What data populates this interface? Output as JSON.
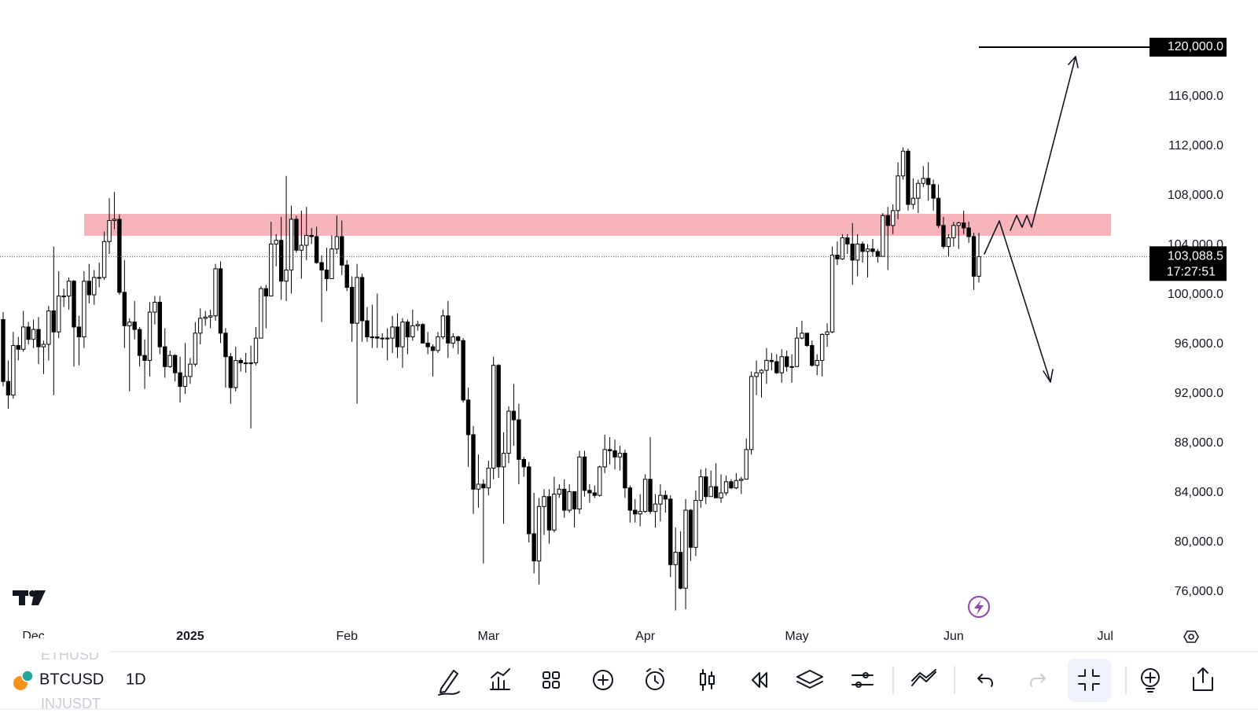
{
  "chart_data": {
    "type": "candlestick",
    "categories": [
      null,
      null,
      null,
      null,
      null,
      null,
      "Dec",
      null,
      null,
      null,
      null,
      null,
      null,
      null,
      null,
      null,
      null,
      null,
      null,
      null,
      null,
      null,
      null,
      null,
      null,
      null,
      null,
      null,
      null,
      null,
      null,
      null,
      null,
      null,
      null,
      null,
      null,
      "2025",
      null,
      null,
      null,
      null,
      null,
      null,
      null,
      null,
      null,
      null,
      null,
      null,
      null,
      null,
      null,
      null,
      null,
      null,
      null,
      null,
      null,
      null,
      null,
      null,
      null,
      null,
      null,
      null,
      null,
      null,
      "Feb",
      null,
      null,
      null,
      null,
      null,
      null,
      null,
      null,
      null,
      null,
      null,
      null,
      null,
      null,
      null,
      null,
      null,
      null,
      null,
      null,
      null,
      null,
      null,
      null,
      null,
      null,
      null,
      "Mar",
      null,
      null,
      null,
      null,
      null,
      null,
      null,
      null,
      null,
      null,
      null,
      null,
      null,
      null,
      null,
      null,
      null,
      null,
      null,
      null,
      null,
      null,
      null,
      null,
      null,
      null,
      null,
      null,
      null,
      null,
      "Apr",
      null,
      null,
      null,
      null,
      null,
      null,
      null,
      null,
      null,
      null,
      null,
      null,
      null,
      null,
      null,
      null,
      null,
      null,
      null,
      null,
      null,
      null,
      null,
      null,
      null,
      null,
      null,
      null,
      null,
      "May",
      null,
      null,
      null,
      null,
      null,
      null,
      null,
      null,
      null,
      null,
      null,
      null,
      null,
      null,
      null,
      null,
      null,
      null,
      null,
      null,
      null,
      null,
      null,
      null,
      null,
      null,
      null,
      null,
      null,
      null,
      "Jun",
      null,
      null,
      null,
      null,
      null,
      null,
      null,
      null,
      null,
      null,
      null,
      null,
      null,
      null,
      null,
      null,
      null,
      null,
      null,
      null,
      null,
      null,
      null,
      null,
      null,
      null,
      null,
      null,
      null,
      "Jul",
      null,
      null,
      null,
      null,
      null
    ],
    "open": [
      98000,
      93000,
      91900,
      95900,
      95600,
      97400,
      96400,
      97200,
      95800,
      96000,
      98700,
      97000,
      99900,
      99900,
      101100,
      97400,
      96600,
      101100,
      100000,
      101400,
      101400,
      104300,
      106000,
      106100,
      100200,
      97500,
      97800,
      97200,
      95100,
      94700,
      98600,
      99400,
      95800,
      94200,
      95100,
      93700,
      92600,
      93400,
      94400,
      96900,
      98100,
      98200,
      98300,
      102100,
      96900,
      95000,
      92500,
      94700,
      94500,
      94500,
      94500,
      96500,
      100500,
      99900,
      104100,
      104400,
      101100,
      102000,
      106100,
      103600,
      104000,
      104800,
      104700,
      102600,
      102000,
      101300,
      103700,
      104700,
      102400,
      100600,
      97700,
      101400,
      97900,
      96600,
      96600,
      96500,
      96500,
      96500,
      97400,
      95800,
      97800,
      96600,
      97500,
      97600,
      96100,
      95800,
      95500,
      96600,
      98300,
      96100,
      96600,
      96300,
      91500,
      88700,
      84300,
      84700,
      84400,
      86000,
      94300,
      86100,
      87200,
      90600,
      89900,
      86700,
      86100,
      80700,
      78500,
      82900,
      83700,
      81000,
      83900,
      84300,
      82600,
      84100,
      82700,
      86900,
      84200,
      84000,
      83800,
      86100,
      87500,
      87400,
      86900,
      87200,
      84400,
      82600,
      82300,
      82500,
      85100,
      82500,
      83100,
      83800,
      83500,
      78200,
      79200,
      76300,
      82600,
      79600,
      83400,
      85300,
      83700,
      84500,
      83600,
      84000,
      84900,
      84400,
      85000,
      85100,
      87500,
      93400,
      93700,
      93900,
      94700,
      94600,
      93700,
      95000,
      94200,
      94200,
      96500,
      96900,
      95900,
      94300,
      94700,
      96800,
      97000,
      103200,
      102900,
      104600,
      104100,
      102800,
      104100,
      103500,
      103700,
      103500,
      103100,
      106400,
      105600,
      106800,
      109600,
      111600,
      107300,
      107800,
      109000,
      109400,
      108900,
      107800,
      105600,
      103900,
      104600,
      105600,
      105800,
      105400,
      104700,
      101500,
      null,
      null,
      null,
      null,
      null,
      null,
      null,
      null,
      null,
      null,
      null,
      null,
      null,
      null,
      null,
      null,
      null,
      null,
      null,
      null,
      null,
      null,
      null,
      null,
      null,
      null,
      null,
      null,
      null,
      null
    ],
    "high": [
      98600,
      94700,
      97000,
      96600,
      98700,
      97800,
      98000,
      98200,
      96300,
      99100,
      103900,
      101900,
      100500,
      101400,
      101200,
      98300,
      101900,
      102500,
      102000,
      102600,
      105100,
      107800,
      108300,
      106500,
      102800,
      98100,
      99500,
      97400,
      96400,
      99400,
      99900,
      99900,
      97300,
      95500,
      95200,
      95000,
      96100,
      94900,
      97800,
      98900,
      98700,
      98800,
      102500,
      102700,
      97300,
      95300,
      95800,
      94900,
      95300,
      95900,
      97400,
      100700,
      100800,
      105900,
      104900,
      106300,
      109600,
      107200,
      106400,
      106800,
      107100,
      105400,
      105500,
      103200,
      103800,
      104800,
      106400,
      106000,
      102800,
      101500,
      102500,
      101700,
      99000,
      99200,
      100100,
      96900,
      97300,
      98300,
      98500,
      98100,
      98000,
      98800,
      97900,
      97700,
      97000,
      96000,
      97000,
      98800,
      99500,
      96900,
      96700,
      96500,
      92500,
      89400,
      87100,
      85100,
      86600,
      95000,
      94400,
      88900,
      91000,
      92800,
      91200,
      86900,
      86500,
      84000,
      83600,
      84300,
      84300,
      85300,
      84700,
      85100,
      84700,
      84100,
      87400,
      87400,
      84700,
      84600,
      86200,
      88700,
      88500,
      88300,
      87800,
      87500,
      84600,
      83500,
      83900,
      85500,
      88500,
      83900,
      84700,
      84200,
      83800,
      81200,
      80900,
      83500,
      82700,
      84200,
      85900,
      86000,
      85800,
      86400,
      85500,
      85400,
      85100,
      85600,
      85300,
      88400,
      93800,
      94700,
      94000,
      95700,
      95300,
      95200,
      95600,
      95500,
      95200,
      97400,
      97900,
      96900,
      96300,
      95200,
      96900,
      97700,
      103900,
      104300,
      104900,
      104900,
      105800,
      104900,
      104300,
      104100,
      104500,
      103700,
      106600,
      107100,
      107300,
      110700,
      111900,
      111800,
      109400,
      109300,
      110400,
      110700,
      109300,
      108900,
      106300,
      104900,
      105900,
      105900,
      106800,
      105900,
      105000,
      105000,
      null,
      null,
      null,
      null,
      null,
      null,
      null,
      null,
      null,
      null,
      null,
      null,
      null,
      null,
      null,
      null,
      null,
      null,
      null,
      null,
      null,
      null,
      null,
      null,
      null,
      null,
      null,
      null,
      null,
      null
    ],
    "low": [
      92600,
      90800,
      91600,
      94700,
      95400,
      96000,
      95700,
      94400,
      93600,
      94700,
      91900,
      96500,
      99000,
      98800,
      94200,
      94300,
      95700,
      99300,
      99200,
      100600,
      101200,
      103300,
      105300,
      100000,
      95700,
      92200,
      96400,
      94200,
      92400,
      93400,
      97600,
      95200,
      93300,
      94100,
      93000,
      91300,
      92000,
      92800,
      94200,
      96000,
      97500,
      97300,
      97900,
      96100,
      92500,
      91200,
      92200,
      93800,
      93700,
      89200,
      94300,
      96500,
      97300,
      99900,
      102300,
      99600,
      99500,
      100100,
      103400,
      101300,
      102800,
      104100,
      102500,
      97800,
      100300,
      101300,
      103300,
      101600,
      100300,
      96200,
      91200,
      96200,
      96200,
      95700,
      95700,
      95700,
      94700,
      95300,
      94900,
      94100,
      95200,
      96300,
      97100,
      96100,
      95200,
      93400,
      95300,
      96400,
      94900,
      95700,
      95200,
      91300,
      86100,
      82300,
      82800,
      78300,
      83800,
      85100,
      85200,
      81500,
      86400,
      87800,
      84700,
      85300,
      80000,
      77500,
      76600,
      80600,
      79900,
      80800,
      83600,
      82000,
      82400,
      81200,
      82300,
      83700,
      83200,
      83600,
      83700,
      85600,
      86300,
      85900,
      85800,
      83600,
      81600,
      81600,
      81300,
      82400,
      82300,
      81200,
      81700,
      82400,
      77200,
      74500,
      76200,
      74600,
      78500,
      78900,
      82800,
      83100,
      83700,
      83600,
      83200,
      83800,
      84300,
      84300,
      83900,
      85100,
      87100,
      91900,
      91700,
      92800,
      93900,
      93600,
      92900,
      93800,
      92900,
      94200,
      96400,
      95800,
      94200,
      93500,
      93400,
      95800,
      96900,
      102400,
      102800,
      103300,
      100800,
      101500,
      102600,
      101400,
      103100,
      102600,
      103100,
      102000,
      104900,
      106100,
      109300,
      106800,
      106900,
      106600,
      108700,
      107600,
      106800,
      105400,
      103700,
      103100,
      103900,
      103700,
      104900,
      104200,
      100400,
      101000,
      null,
      null,
      null,
      null,
      null,
      null,
      null,
      null,
      null,
      null,
      null,
      null,
      null,
      null,
      null,
      null,
      null,
      null,
      null,
      null,
      null,
      null,
      null,
      null,
      null,
      null,
      null,
      null,
      null,
      null
    ],
    "close": [
      93000,
      91900,
      95900,
      95600,
      97400,
      96400,
      97200,
      95800,
      96000,
      98700,
      97000,
      99900,
      99900,
      101100,
      97400,
      96600,
      101100,
      100000,
      101400,
      101400,
      104300,
      106000,
      106100,
      100200,
      97500,
      97800,
      97200,
      95100,
      94700,
      98600,
      99400,
      95800,
      94200,
      95100,
      93700,
      92600,
      93400,
      94400,
      96900,
      98100,
      98200,
      98300,
      102100,
      96900,
      95000,
      92500,
      94700,
      94500,
      94500,
      94500,
      96500,
      100500,
      99900,
      104100,
      104400,
      101100,
      102000,
      106100,
      103600,
      104000,
      104800,
      104700,
      102600,
      102000,
      101300,
      103700,
      104700,
      102400,
      100600,
      97700,
      101400,
      97900,
      96600,
      96600,
      96500,
      96500,
      96500,
      97400,
      95800,
      97800,
      96600,
      97500,
      97600,
      96100,
      95800,
      95500,
      96600,
      98300,
      96100,
      96600,
      96300,
      91500,
      88700,
      84300,
      84700,
      84400,
      86000,
      94300,
      86100,
      87200,
      90600,
      89900,
      86700,
      86100,
      80700,
      78500,
      82900,
      83700,
      81000,
      83900,
      84300,
      82600,
      84100,
      82700,
      86900,
      84200,
      84000,
      83800,
      86100,
      87500,
      87400,
      86900,
      87200,
      84400,
      82600,
      82300,
      82500,
      85100,
      82500,
      83100,
      83800,
      83500,
      78200,
      79200,
      76300,
      82600,
      79600,
      83400,
      85300,
      83700,
      84500,
      83600,
      84000,
      84900,
      84400,
      85000,
      85100,
      87500,
      93400,
      93700,
      93900,
      94700,
      94600,
      93700,
      95000,
      94200,
      94200,
      96500,
      96900,
      95900,
      94300,
      94700,
      96800,
      97000,
      103200,
      102900,
      104600,
      104100,
      102800,
      104100,
      103500,
      103700,
      103500,
      103100,
      106400,
      105600,
      106800,
      109600,
      111600,
      107300,
      107800,
      109000,
      109400,
      108900,
      107800,
      105600,
      103900,
      104600,
      105600,
      105800,
      105400,
      104700,
      101500,
      103088.5,
      null,
      null,
      null,
      null,
      null,
      null,
      null,
      null,
      null,
      null,
      null,
      null,
      null,
      null,
      null,
      null,
      null,
      null,
      null,
      null,
      null,
      null,
      null,
      null,
      null,
      null,
      null,
      null,
      null,
      null
    ],
    "ylim": [
      73650,
      123810
    ],
    "yticks": [
      {
        "value": 76000,
        "label": "76,000.0"
      },
      {
        "value": 80000,
        "label": "80,000.0"
      },
      {
        "value": 84000,
        "label": "84,000.0"
      },
      {
        "value": 88000,
        "label": "88,000.0"
      },
      {
        "value": 92000,
        "label": "92,000.0"
      },
      {
        "value": 96000,
        "label": "96,000.0"
      },
      {
        "value": 100000,
        "label": "100,000.0"
      },
      {
        "value": 104000,
        "label": "104,000.0"
      },
      {
        "value": 108000,
        "label": "108,000.0"
      },
      {
        "value": 112000,
        "label": "112,000.0"
      },
      {
        "value": 116000,
        "label": "116,000.0"
      }
    ],
    "up_color": "#ffffff",
    "down_color": "#000000",
    "zone": [
      104760,
      106540
    ],
    "zone_color": "#f8b4bb",
    "target": {
      "value": 120000,
      "label": "120,000.0"
    },
    "last_price": {
      "value": 103088.5,
      "label": "103,088.5"
    },
    "countdown": "17:27:51"
  },
  "toolbar": {
    "previous_symbol": "ETHUSD",
    "symbol": "BTCUSD",
    "interval": "1D",
    "next_symbol": "INJUSDT"
  }
}
